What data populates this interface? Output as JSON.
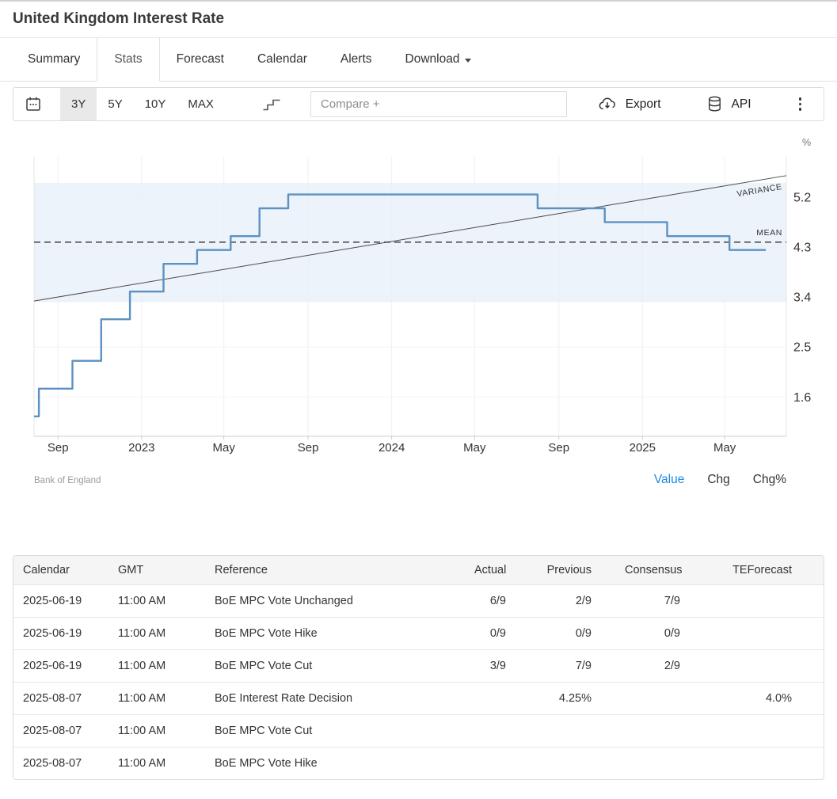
{
  "page": {
    "title": "United Kingdom Interest Rate"
  },
  "tabs": [
    {
      "label": "Summary",
      "active": false
    },
    {
      "label": "Stats",
      "active": true
    },
    {
      "label": "Forecast",
      "active": false
    },
    {
      "label": "Calendar",
      "active": false
    },
    {
      "label": "Alerts",
      "active": false
    },
    {
      "label": "Download",
      "active": false,
      "has_dropdown": true
    }
  ],
  "toolbar": {
    "ranges": [
      {
        "label": "3Y",
        "active": true
      },
      {
        "label": "5Y",
        "active": false
      },
      {
        "label": "10Y",
        "active": false
      },
      {
        "label": "MAX",
        "active": false
      }
    ],
    "compare_placeholder": "Compare +",
    "export_label": "Export",
    "api_label": "API"
  },
  "chart_data": {
    "type": "line",
    "subtype": "step",
    "title": "United Kingdom Interest Rate",
    "unit": "%",
    "source": "Bank of England",
    "x_domain": [
      "2022-07-28",
      "2025-07-30"
    ],
    "ylim": [
      0.89,
      5.93
    ],
    "y_ticks": [
      5.2,
      4.3,
      3.4,
      2.5,
      1.6
    ],
    "x_ticks": [
      {
        "date": "2022-09-01",
        "label": "Sep"
      },
      {
        "date": "2023-01-01",
        "label": "2023"
      },
      {
        "date": "2023-05-01",
        "label": "May"
      },
      {
        "date": "2023-09-01",
        "label": "Sep"
      },
      {
        "date": "2024-01-01",
        "label": "2024"
      },
      {
        "date": "2024-05-01",
        "label": "May"
      },
      {
        "date": "2024-09-01",
        "label": "Sep"
      },
      {
        "date": "2025-01-01",
        "label": "2025"
      },
      {
        "date": "2025-05-01",
        "label": "May"
      }
    ],
    "series": {
      "name": "Interest Rate",
      "start_value": 1.25,
      "end_date": "2025-06-30",
      "steps": [
        [
          "2022-08-04",
          1.75
        ],
        [
          "2022-09-22",
          2.25
        ],
        [
          "2022-11-03",
          3.0
        ],
        [
          "2022-12-15",
          3.5
        ],
        [
          "2023-02-02",
          4.0
        ],
        [
          "2023-03-23",
          4.25
        ],
        [
          "2023-05-11",
          4.5
        ],
        [
          "2023-06-22",
          5.0
        ],
        [
          "2023-08-03",
          5.25
        ],
        [
          "2024-08-01",
          5.0
        ],
        [
          "2024-11-07",
          4.75
        ],
        [
          "2025-02-06",
          4.5
        ],
        [
          "2025-05-08",
          4.25
        ]
      ]
    },
    "mean": {
      "label": "MEAN",
      "value": 4.39
    },
    "variance_band": {
      "low": 3.31,
      "high": 5.46
    },
    "trend_line": {
      "label": "VARIANCE",
      "start": [
        "2022-07-28",
        3.33
      ],
      "end": [
        "2025-07-30",
        5.59
      ]
    },
    "line_color": "#5d91c2",
    "band_color": "#e7f0f9",
    "legend_position": "none",
    "grid": true
  },
  "chart_footer": {
    "source": "Bank of England",
    "links": [
      {
        "label": "Value",
        "active": true,
        "color": "#1e88e5"
      },
      {
        "label": "Chg",
        "active": false
      },
      {
        "label": "Chg%",
        "active": false
      }
    ]
  },
  "table": {
    "headers": [
      "Calendar",
      "GMT",
      "Reference",
      "Actual",
      "Previous",
      "Consensus",
      "TEForecast"
    ],
    "rows": [
      {
        "calendar": "2025-06-19",
        "gmt": "11:00 AM",
        "reference": "BoE MPC Vote Unchanged",
        "actual": "6/9",
        "previous": "2/9",
        "consensus": "7/9",
        "teforecast": ""
      },
      {
        "calendar": "2025-06-19",
        "gmt": "11:00 AM",
        "reference": "BoE MPC Vote Hike",
        "actual": "0/9",
        "previous": "0/9",
        "consensus": "0/9",
        "teforecast": ""
      },
      {
        "calendar": "2025-06-19",
        "gmt": "11:00 AM",
        "reference": "BoE MPC Vote Cut",
        "actual": "3/9",
        "previous": "7/9",
        "consensus": "2/9",
        "teforecast": ""
      },
      {
        "calendar": "2025-08-07",
        "gmt": "11:00 AM",
        "reference": "BoE Interest Rate Decision",
        "actual": "",
        "previous": "4.25%",
        "consensus": "",
        "teforecast": "4.0%"
      },
      {
        "calendar": "2025-08-07",
        "gmt": "11:00 AM",
        "reference": "BoE MPC Vote Cut",
        "actual": "",
        "previous": "",
        "consensus": "",
        "teforecast": ""
      },
      {
        "calendar": "2025-08-07",
        "gmt": "11:00 AM",
        "reference": "BoE MPC Vote Hike",
        "actual": "",
        "previous": "",
        "consensus": "",
        "teforecast": ""
      }
    ]
  }
}
